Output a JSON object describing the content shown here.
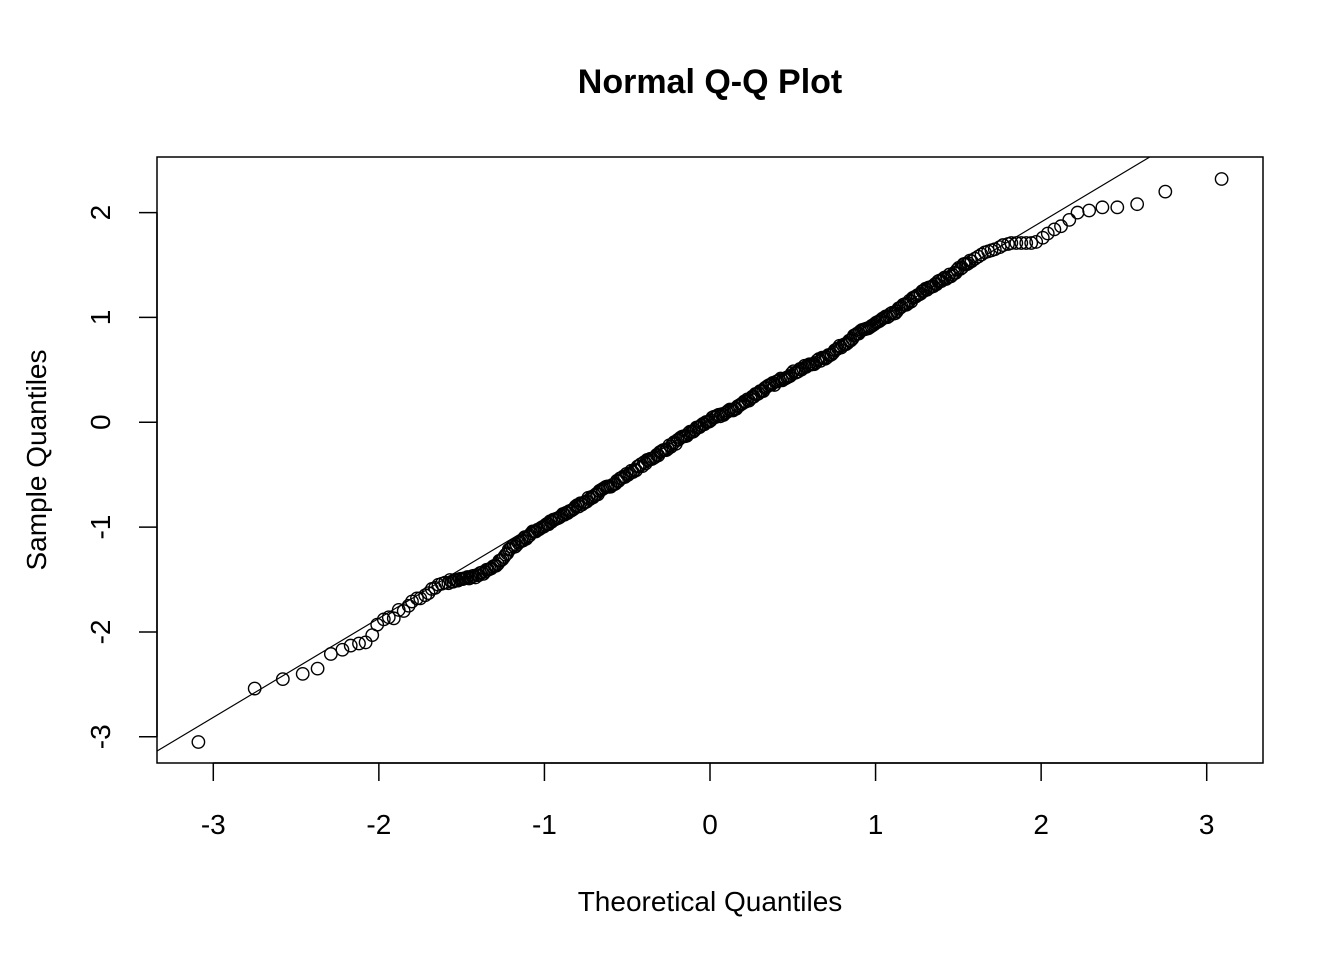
{
  "chart_data": {
    "type": "scatter",
    "title": "Normal Q-Q Plot",
    "xlabel": "Theoretical Quantiles",
    "ylabel": "Sample Quantiles",
    "xlim": [
      -3.34,
      3.34
    ],
    "ylim": [
      -3.25,
      2.53
    ],
    "x_ticks": [
      -3,
      -2,
      -1,
      0,
      1,
      2,
      3
    ],
    "y_ticks": [
      -3,
      -2,
      -1,
      0,
      1,
      2
    ],
    "grid": false,
    "legend": "none",
    "reference_line": {
      "intercept": 0.02,
      "slope": 0.945
    },
    "tail_points": [
      {
        "x": -3.09,
        "y": -3.05
      },
      {
        "x": -2.75,
        "y": -2.54
      },
      {
        "x": -2.58,
        "y": -2.45
      },
      {
        "x": -2.46,
        "y": -2.4
      },
      {
        "x": -2.37,
        "y": -2.35
      },
      {
        "x": -2.29,
        "y": -2.21
      },
      {
        "x": -2.22,
        "y": -2.17
      },
      {
        "x": -2.17,
        "y": -2.13
      },
      {
        "x": -2.12,
        "y": -2.11
      },
      {
        "x": -2.08,
        "y": -2.1
      },
      {
        "x": -2.04,
        "y": -2.03
      },
      {
        "x": -2.01,
        "y": -1.93
      },
      {
        "x": -1.97,
        "y": -1.88
      },
      {
        "x": -1.94,
        "y": -1.86
      },
      {
        "x": -1.91,
        "y": -1.87
      },
      {
        "x": -1.88,
        "y": -1.79
      },
      {
        "x": -1.85,
        "y": -1.8
      },
      {
        "x": -1.82,
        "y": -1.75
      },
      {
        "x": -1.8,
        "y": -1.71
      },
      {
        "x": -1.77,
        "y": -1.68
      },
      {
        "x": -1.75,
        "y": -1.68
      },
      {
        "x": -1.72,
        "y": -1.65
      },
      {
        "x": -1.7,
        "y": -1.63
      },
      {
        "x": -1.68,
        "y": -1.59
      },
      {
        "x": -1.66,
        "y": -1.58
      },
      {
        "x": -1.64,
        "y": -1.55
      },
      {
        "x": -1.62,
        "y": -1.54
      },
      {
        "x": -1.6,
        "y": -1.53
      },
      {
        "x": 1.6,
        "y": 1.56
      },
      {
        "x": 1.62,
        "y": 1.58
      },
      {
        "x": 1.64,
        "y": 1.6
      },
      {
        "x": 1.66,
        "y": 1.62
      },
      {
        "x": 1.68,
        "y": 1.63
      },
      {
        "x": 1.7,
        "y": 1.64
      },
      {
        "x": 1.72,
        "y": 1.65
      },
      {
        "x": 1.75,
        "y": 1.67
      },
      {
        "x": 1.77,
        "y": 1.69
      },
      {
        "x": 1.8,
        "y": 1.7
      },
      {
        "x": 1.82,
        "y": 1.71
      },
      {
        "x": 1.85,
        "y": 1.71
      },
      {
        "x": 1.88,
        "y": 1.71
      },
      {
        "x": 1.91,
        "y": 1.71
      },
      {
        "x": 1.94,
        "y": 1.71
      },
      {
        "x": 1.97,
        "y": 1.72
      },
      {
        "x": 2.01,
        "y": 1.76
      },
      {
        "x": 2.04,
        "y": 1.8
      },
      {
        "x": 2.08,
        "y": 1.84
      },
      {
        "x": 2.12,
        "y": 1.87
      },
      {
        "x": 2.17,
        "y": 1.93
      },
      {
        "x": 2.22,
        "y": 2.0
      },
      {
        "x": 2.29,
        "y": 2.02
      },
      {
        "x": 2.37,
        "y": 2.05
      },
      {
        "x": 2.46,
        "y": 2.05
      },
      {
        "x": 2.58,
        "y": 2.08
      },
      {
        "x": 2.75,
        "y": 2.2
      },
      {
        "x": 3.09,
        "y": 2.32
      }
    ],
    "body_curve": [
      {
        "x": -1.58,
        "y": -1.52
      },
      {
        "x": -1.5,
        "y": -1.5
      },
      {
        "x": -1.4,
        "y": -1.46
      },
      {
        "x": -1.3,
        "y": -1.38
      },
      {
        "x": -1.2,
        "y": -1.2
      },
      {
        "x": -1.05,
        "y": -1.03
      },
      {
        "x": -0.9,
        "y": -0.9
      },
      {
        "x": -0.7,
        "y": -0.7
      },
      {
        "x": -0.5,
        "y": -0.5
      },
      {
        "x": -0.3,
        "y": -0.29
      },
      {
        "x": -0.1,
        "y": -0.08
      },
      {
        "x": 0.0,
        "y": 0.02
      },
      {
        "x": 0.15,
        "y": 0.13
      },
      {
        "x": 0.3,
        "y": 0.29
      },
      {
        "x": 0.5,
        "y": 0.47
      },
      {
        "x": 0.7,
        "y": 0.62
      },
      {
        "x": 0.9,
        "y": 0.85
      },
      {
        "x": 1.1,
        "y": 1.03
      },
      {
        "x": 1.3,
        "y": 1.26
      },
      {
        "x": 1.45,
        "y": 1.4
      },
      {
        "x": 1.58,
        "y": 1.55
      }
    ],
    "body_point_count": 330
  }
}
